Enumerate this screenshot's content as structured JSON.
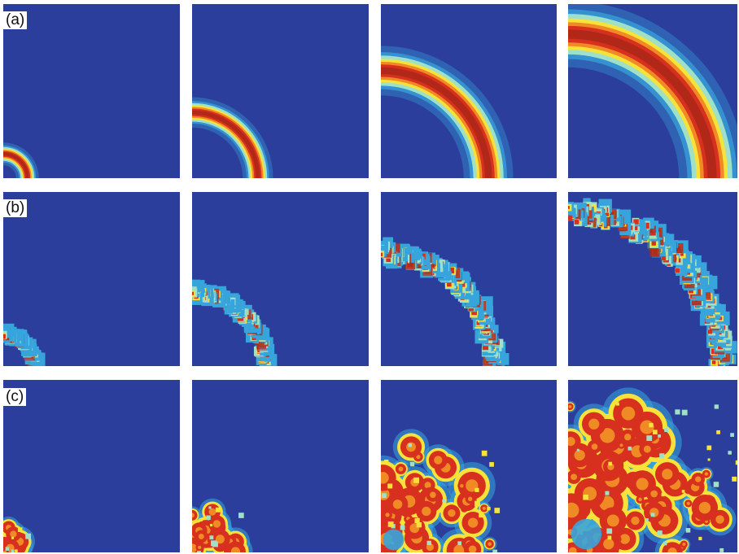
{
  "figure": {
    "rows": [
      {
        "label": "(a)",
        "pattern": "smooth-ring",
        "radii_fraction": [
          0.15,
          0.39,
          0.64,
          0.89
        ]
      },
      {
        "label": "(b)",
        "pattern": "rough-front",
        "radii_fraction": [
          0.17,
          0.41,
          0.64,
          0.9
        ]
      },
      {
        "label": "(c)",
        "pattern": "clusters",
        "spread_fraction": [
          0.15,
          0.25,
          0.6,
          0.9
        ]
      }
    ],
    "colormap": [
      "#2c3e9c",
      "#37a5dc",
      "#9fe1c8",
      "#f7e23a",
      "#f08a24",
      "#d7301f",
      "#b22818"
    ],
    "background_color": "#2c3e9c"
  }
}
